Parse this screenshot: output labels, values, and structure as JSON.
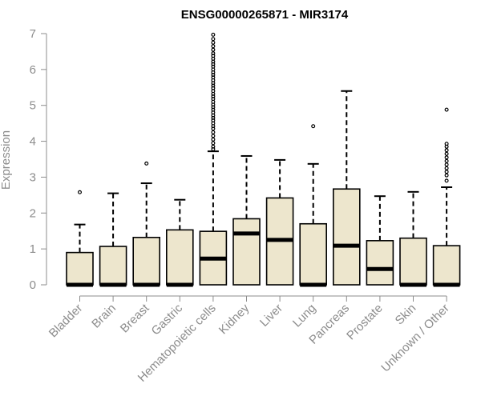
{
  "chart_data": {
    "type": "boxplot",
    "title": "ENSG00000265871 - MIR3174",
    "ylabel": "Expression",
    "xlabel": "",
    "ylim": [
      0,
      7
    ],
    "yticks": [
      0,
      1,
      2,
      3,
      4,
      5,
      6,
      7
    ],
    "grid": false,
    "legend": "none",
    "colors": {
      "box_fill": "#ede6cd",
      "box_stroke": "#000000",
      "axis": "#8c8c8c",
      "tick_label": "#8c8c8c"
    },
    "categories": [
      "Bladder",
      "Brain",
      "Breast",
      "Gastric",
      "Hematopoietic cells",
      "Kidney",
      "Liver",
      "Lung",
      "Pancreas",
      "Prostate",
      "Skin",
      "Unknown / Other"
    ],
    "boxes": [
      {
        "category": "Bladder",
        "min": 0,
        "q1": 0,
        "median": 0,
        "q3": 0.9,
        "max": 1.68,
        "outliers": [
          2.58
        ]
      },
      {
        "category": "Brain",
        "min": 0,
        "q1": 0,
        "median": 0,
        "q3": 1.07,
        "max": 2.55,
        "outliers": []
      },
      {
        "category": "Breast",
        "min": 0,
        "q1": 0,
        "median": 0,
        "q3": 1.32,
        "max": 2.83,
        "outliers": [
          3.38
        ]
      },
      {
        "category": "Gastric",
        "min": 0,
        "q1": 0,
        "median": 0,
        "q3": 1.53,
        "max": 2.37,
        "outliers": []
      },
      {
        "category": "Hematopoietic cells",
        "min": 0,
        "q1": 0,
        "median": 0.73,
        "q3": 1.49,
        "max": 3.72,
        "outliers": [
          3.78,
          3.85,
          3.95,
          4.05,
          4.15,
          4.25,
          4.35,
          4.42,
          4.5,
          4.58,
          4.65,
          4.72,
          4.8,
          4.88,
          4.95,
          5.02,
          5.1,
          5.18,
          5.25,
          5.32,
          5.4,
          5.48,
          5.55,
          5.62,
          5.7,
          5.78,
          5.85,
          5.92,
          6.0,
          6.08,
          6.15,
          6.22,
          6.3,
          6.38,
          6.45,
          6.55,
          6.65,
          6.75,
          6.85,
          6.97
        ]
      },
      {
        "category": "Kidney",
        "min": 0,
        "q1": 0,
        "median": 1.43,
        "q3": 1.84,
        "max": 3.59,
        "outliers": []
      },
      {
        "category": "Liver",
        "min": 0,
        "q1": 0,
        "median": 1.25,
        "q3": 2.42,
        "max": 3.48,
        "outliers": []
      },
      {
        "category": "Lung",
        "min": 0,
        "q1": 0,
        "median": 0,
        "q3": 1.7,
        "max": 3.37,
        "outliers": [
          4.42
        ]
      },
      {
        "category": "Pancreas",
        "min": 0,
        "q1": 0,
        "median": 1.09,
        "q3": 2.67,
        "max": 5.4,
        "outliers": []
      },
      {
        "category": "Prostate",
        "min": 0,
        "q1": 0,
        "median": 0.44,
        "q3": 1.23,
        "max": 2.47,
        "outliers": []
      },
      {
        "category": "Skin",
        "min": 0,
        "q1": 0,
        "median": 0,
        "q3": 1.3,
        "max": 2.59,
        "outliers": []
      },
      {
        "category": "Unknown / Other",
        "min": 0,
        "q1": 0,
        "median": 0,
        "q3": 1.09,
        "max": 2.72,
        "outliers": [
          2.9,
          3.05,
          3.15,
          3.25,
          3.35,
          3.45,
          3.55,
          3.65,
          3.75,
          3.85,
          3.93,
          4.88
        ]
      }
    ]
  }
}
